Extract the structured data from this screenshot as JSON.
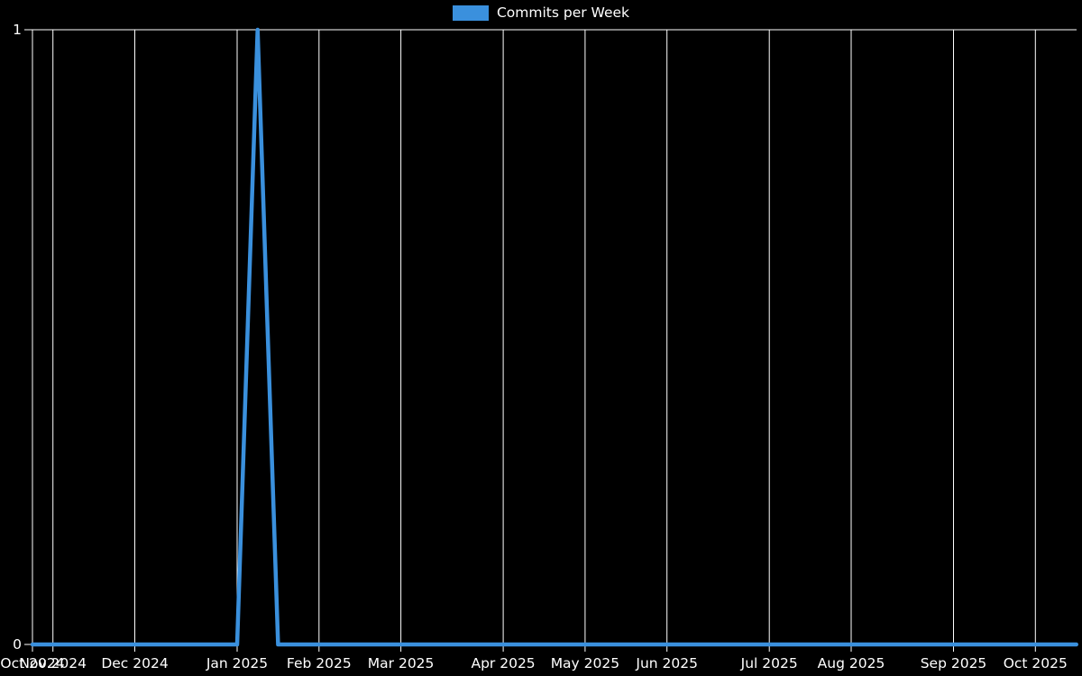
{
  "chart_data": {
    "type": "line",
    "title": "",
    "legend": {
      "label": "Commits per Week",
      "position": "top-center"
    },
    "ylim": [
      0,
      1
    ],
    "y_ticks": [
      {
        "label": "1",
        "value": 1
      },
      {
        "label": "0",
        "value": 0
      }
    ],
    "x_ticks": [
      {
        "label": "Oct 2024",
        "index": 0
      },
      {
        "label": "Nov 2024",
        "index": 1
      },
      {
        "label": "Dec 2024",
        "index": 5
      },
      {
        "label": "Jan 2025",
        "index": 10
      },
      {
        "label": "Feb 2025",
        "index": 14
      },
      {
        "label": "Mar 2025",
        "index": 18
      },
      {
        "label": "Apr 2025",
        "index": 23
      },
      {
        "label": "May 2025",
        "index": 27
      },
      {
        "label": "Jun 2025",
        "index": 31
      },
      {
        "label": "Jul 2025",
        "index": 36
      },
      {
        "label": "Aug 2025",
        "index": 40
      },
      {
        "label": "Sep 2025",
        "index": 45
      },
      {
        "label": "Oct 2025",
        "index": 49
      }
    ],
    "num_points": 52,
    "series": [
      {
        "name": "Commits per Week",
        "values": [
          0,
          0,
          0,
          0,
          0,
          0,
          0,
          0,
          0,
          0,
          0,
          1,
          0,
          0,
          0,
          0,
          0,
          0,
          0,
          0,
          0,
          0,
          0,
          0,
          0,
          0,
          0,
          0,
          0,
          0,
          0,
          0,
          0,
          0,
          0,
          0,
          0,
          0,
          0,
          0,
          0,
          0,
          0,
          0,
          0,
          0,
          0,
          0,
          0,
          0,
          0,
          0
        ]
      }
    ],
    "colors": {
      "background": "#000000",
      "grid": "#ffffff",
      "text": "#ffffff",
      "line": "#3a90dd"
    }
  }
}
